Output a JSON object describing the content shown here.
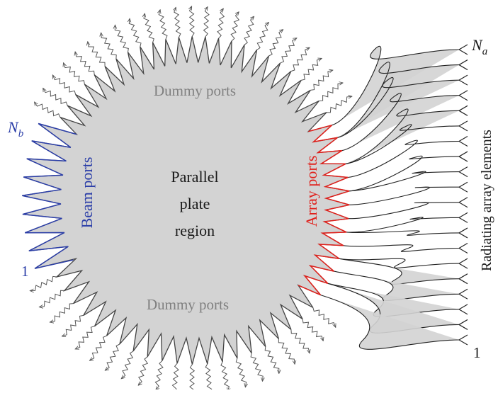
{
  "labels": {
    "dummy_top": "Dummy ports",
    "dummy_bottom": "Dummy ports",
    "beam_ports": "Beam ports",
    "array_ports": "Array ports",
    "region_line1": "Parallel",
    "region_line2": "plate",
    "region_line3": "region",
    "radiating": "Radiating array elements",
    "nb_main": "N",
    "nb_sub": "b",
    "na_main": "N",
    "na_sub": "a",
    "beam_index_1": "1",
    "array_index_1": "1"
  },
  "colors": {
    "region_fill": "#d3d3d3",
    "outline": "#444444",
    "beam": "#2b3ea8",
    "array": "#e0201b",
    "dummy_label": "#808080",
    "text": "#1a1a1a"
  },
  "icons": {
    "dummy_port_symbol": "wavy-arrow-icon",
    "radiating_element_symbol": "dipole-fork-icon"
  }
}
